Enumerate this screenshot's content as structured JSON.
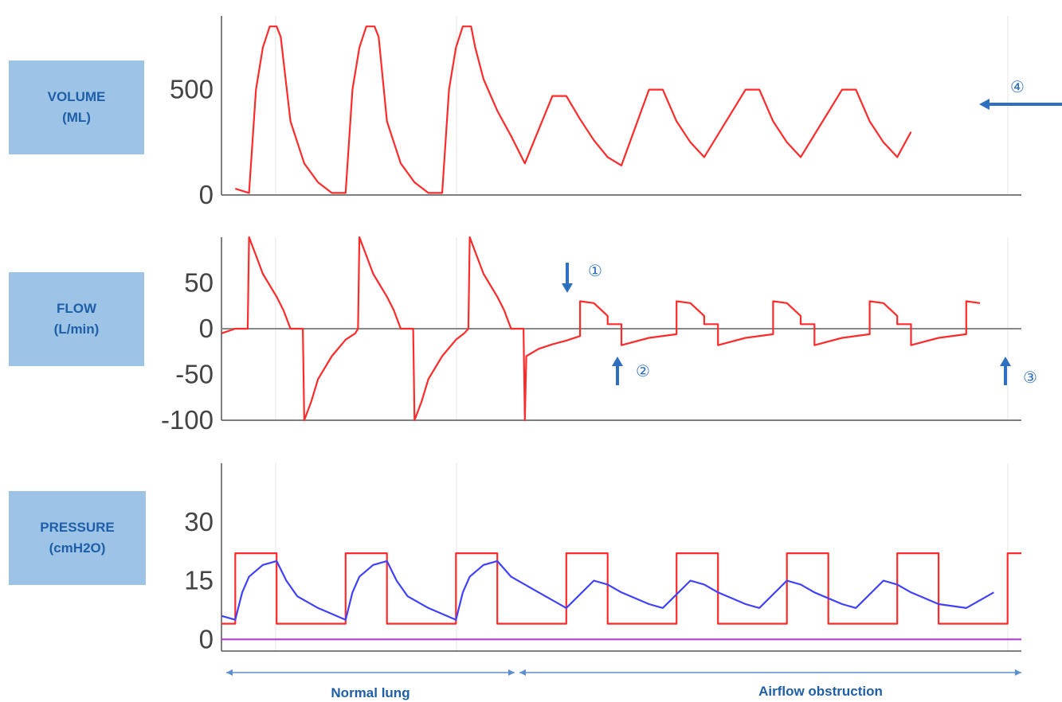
{
  "chart_data": [
    {
      "type": "line",
      "panel": "volume",
      "ylabel": [
        "VOLUME",
        "(ML)"
      ],
      "yticks": [
        "500",
        "0"
      ],
      "tick_values": [
        500,
        0
      ],
      "ylim": [
        0,
        850
      ],
      "grid": true,
      "series": [
        {
          "color": "#ff2b2b",
          "points": [
            [
              1,
              30
            ],
            [
              2,
              10
            ],
            [
              2.5,
              500
            ],
            [
              3,
              700
            ],
            [
              3.5,
              800
            ],
            [
              4,
              800
            ],
            [
              4.3,
              750
            ],
            [
              5,
              350
            ],
            [
              6,
              150
            ],
            [
              7,
              60
            ],
            [
              8,
              10
            ],
            [
              9,
              10
            ],
            [
              9.5,
              500
            ],
            [
              10,
              700
            ],
            [
              10.5,
              800
            ],
            [
              11.1,
              800
            ],
            [
              11.4,
              750
            ],
            [
              12,
              350
            ],
            [
              13,
              150
            ],
            [
              14,
              60
            ],
            [
              15,
              10
            ],
            [
              16,
              10
            ],
            [
              16.5,
              500
            ],
            [
              17,
              700
            ],
            [
              17.5,
              800
            ],
            [
              18.1,
              800
            ],
            [
              18.4,
              700
            ],
            [
              19,
              550
            ],
            [
              20,
              400
            ],
            [
              21,
              280
            ],
            [
              22,
              150
            ],
            [
              24,
              470
            ],
            [
              25,
              470
            ],
            [
              26,
              360
            ],
            [
              27,
              260
            ],
            [
              28,
              180
            ],
            [
              29,
              140
            ],
            [
              31,
              500
            ],
            [
              32,
              500
            ],
            [
              33,
              350
            ],
            [
              34,
              250
            ],
            [
              35,
              180
            ],
            [
              38,
              500
            ],
            [
              39,
              500
            ],
            [
              40,
              350
            ],
            [
              41,
              250
            ],
            [
              42,
              180
            ],
            [
              45,
              500
            ],
            [
              46,
              500
            ],
            [
              47,
              350
            ],
            [
              48,
              250
            ],
            [
              49,
              180
            ],
            [
              50,
              300
            ]
          ]
        }
      ]
    },
    {
      "type": "line",
      "panel": "flow",
      "ylabel": [
        "FLOW",
        "(L/min)"
      ],
      "yticks": [
        "50",
        "0",
        "-50",
        "-100"
      ],
      "tick_values": [
        50,
        0,
        -50,
        -100
      ],
      "ylim": [
        -100,
        100
      ],
      "grid": true,
      "series": [
        {
          "color": "#ff2b2b",
          "points": [
            [
              0,
              -5
            ],
            [
              1,
              0
            ],
            [
              1.9,
              0
            ],
            [
              2,
              100
            ],
            [
              2.5,
              80
            ],
            [
              3,
              60
            ],
            [
              4,
              35
            ],
            [
              4.5,
              20
            ],
            [
              5,
              0
            ],
            [
              5,
              0
            ],
            [
              5.9,
              0
            ],
            [
              6,
              -100
            ],
            [
              6.5,
              -80
            ],
            [
              7,
              -55
            ],
            [
              8,
              -30
            ],
            [
              9,
              -12
            ],
            [
              9.7,
              -5
            ],
            [
              9.9,
              0
            ],
            [
              10,
              100
            ],
            [
              10.5,
              80
            ],
            [
              11,
              60
            ],
            [
              12,
              35
            ],
            [
              12.5,
              20
            ],
            [
              13,
              0
            ],
            [
              13.9,
              0
            ],
            [
              14,
              -100
            ],
            [
              14.5,
              -80
            ],
            [
              15,
              -55
            ],
            [
              16,
              -30
            ],
            [
              17,
              -12
            ],
            [
              17.6,
              -5
            ],
            [
              17.9,
              0
            ],
            [
              18,
              100
            ],
            [
              18.5,
              80
            ],
            [
              19,
              60
            ],
            [
              20,
              35
            ],
            [
              20.5,
              20
            ],
            [
              21,
              0
            ],
            [
              21.9,
              0
            ],
            [
              22,
              -100
            ],
            [
              22.1,
              -30
            ],
            [
              23,
              -22
            ],
            [
              24,
              -17
            ],
            [
              25,
              -13
            ],
            [
              26,
              -8
            ],
            [
              26,
              30
            ],
            [
              27,
              28
            ],
            [
              28,
              14
            ],
            [
              28,
              5
            ],
            [
              29,
              5
            ],
            [
              29,
              -18
            ],
            [
              31,
              -10
            ],
            [
              33,
              -6
            ],
            [
              33,
              30
            ],
            [
              34,
              28
            ],
            [
              35,
              14
            ],
            [
              35,
              5
            ],
            [
              36,
              5
            ],
            [
              36,
              -18
            ],
            [
              38,
              -10
            ],
            [
              40,
              -6
            ],
            [
              40,
              30
            ],
            [
              41,
              28
            ],
            [
              42,
              14
            ],
            [
              42,
              5
            ],
            [
              43,
              5
            ],
            [
              43,
              -18
            ],
            [
              45,
              -10
            ],
            [
              47,
              -6
            ],
            [
              47,
              30
            ],
            [
              48,
              28
            ],
            [
              49,
              14
            ],
            [
              49,
              5
            ],
            [
              50,
              5
            ],
            [
              50,
              -18
            ],
            [
              52,
              -10
            ],
            [
              54,
              -6
            ],
            [
              54,
              30
            ],
            [
              55,
              28
            ]
          ]
        }
      ],
      "annotations": [
        {
          "text": "①",
          "arrow": "down"
        },
        {
          "text": "②",
          "arrow": "up"
        },
        {
          "text": "③",
          "arrow": "up"
        }
      ]
    },
    {
      "type": "line",
      "panel": "pressure",
      "ylabel": [
        "PRESSURE",
        "(cmH2O)"
      ],
      "yticks": [
        "30",
        "15",
        "0"
      ],
      "tick_values": [
        30,
        15,
        0
      ],
      "ylim": [
        -3,
        45
      ],
      "grid": true,
      "series": [
        {
          "color": "#ff2b2b",
          "points": [
            [
              0,
              4
            ],
            [
              1,
              4
            ],
            [
              1,
              22
            ],
            [
              4,
              22
            ],
            [
              4,
              4
            ],
            [
              9,
              4
            ],
            [
              9,
              22
            ],
            [
              12,
              22
            ],
            [
              12,
              4
            ],
            [
              17,
              4
            ],
            [
              17,
              22
            ],
            [
              20,
              22
            ],
            [
              20,
              4
            ],
            [
              25,
              4
            ],
            [
              25,
              22
            ],
            [
              28,
              22
            ],
            [
              28,
              4
            ],
            [
              33,
              4
            ],
            [
              33,
              22
            ],
            [
              36,
              22
            ],
            [
              36,
              4
            ],
            [
              41,
              4
            ],
            [
              41,
              22
            ],
            [
              44,
              22
            ],
            [
              44,
              4
            ],
            [
              49,
              4
            ],
            [
              49,
              22
            ],
            [
              52,
              22
            ],
            [
              52,
              4
            ],
            [
              57,
              4
            ],
            [
              57,
              22
            ],
            [
              58,
              22
            ]
          ]
        },
        {
          "color": "#4040ff",
          "points": [
            [
              0,
              6
            ],
            [
              1,
              5
            ],
            [
              1.5,
              12
            ],
            [
              2,
              16
            ],
            [
              3,
              19
            ],
            [
              4,
              20
            ],
            [
              4.7,
              15
            ],
            [
              5.5,
              11
            ],
            [
              7,
              8
            ],
            [
              9,
              5
            ],
            [
              9.5,
              12
            ],
            [
              10,
              16
            ],
            [
              11,
              19
            ],
            [
              12,
              20
            ],
            [
              12.7,
              15
            ],
            [
              13.5,
              11
            ],
            [
              15,
              8
            ],
            [
              17,
              5
            ],
            [
              17.5,
              12
            ],
            [
              18,
              16
            ],
            [
              19,
              19
            ],
            [
              20,
              20
            ],
            [
              21,
              16
            ],
            [
              23,
              12
            ],
            [
              25,
              8
            ],
            [
              27,
              15
            ],
            [
              28,
              14
            ],
            [
              29,
              12
            ],
            [
              31,
              9
            ],
            [
              32,
              8
            ],
            [
              34,
              15
            ],
            [
              35,
              14
            ],
            [
              36,
              12
            ],
            [
              38,
              9
            ],
            [
              39,
              8
            ],
            [
              41,
              15
            ],
            [
              42,
              14
            ],
            [
              43,
              12
            ],
            [
              45,
              9
            ],
            [
              46,
              8
            ],
            [
              48,
              15
            ],
            [
              49,
              14
            ],
            [
              50,
              12
            ],
            [
              52,
              9
            ],
            [
              54,
              8
            ],
            [
              56,
              12
            ]
          ]
        },
        {
          "color": "#b040d0",
          "points": [
            [
              0,
              0
            ],
            [
              58,
              0
            ]
          ]
        }
      ]
    }
  ],
  "marker_4": "④",
  "footer": {
    "normal": "Normal lung",
    "obstruction": "Airflow obstruction"
  }
}
